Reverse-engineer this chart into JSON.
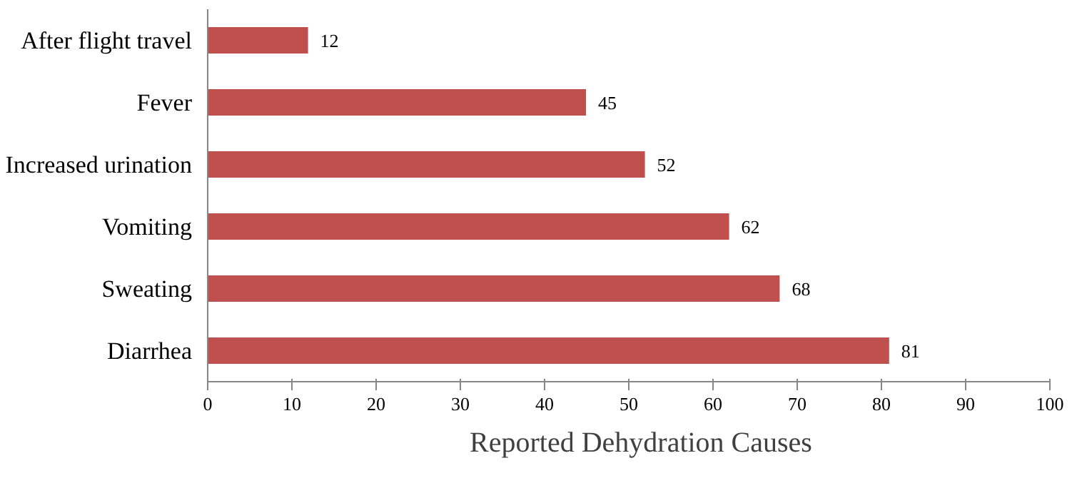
{
  "chart_data": {
    "type": "bar",
    "orientation": "horizontal",
    "categories": [
      "After flight travel",
      "Fever",
      "Increased urination",
      "Vomiting",
      "Sweating",
      "Diarrhea"
    ],
    "series": [
      {
        "name": "Reported Dehydration Causes",
        "color": "#c0504d",
        "values": [
          12,
          45,
          52,
          62,
          68,
          81
        ]
      }
    ],
    "xlim": [
      0,
      100
    ],
    "xticks": [
      0,
      10,
      20,
      30,
      40,
      50,
      60,
      70,
      80,
      90,
      100
    ],
    "data_labels": true,
    "legend": "bottom",
    "grid": false
  }
}
